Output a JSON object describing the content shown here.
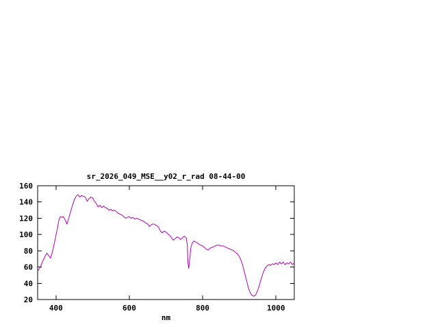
{
  "window": {
    "background": "#ffffff"
  },
  "chart_data": {
    "type": "line",
    "title": "sr_2026_049_MSE__y02_r_rad 08-44-00",
    "xlabel": "nm",
    "ylabel": "",
    "xlim": [
      350,
      1050
    ],
    "ylim": [
      20,
      160
    ],
    "x_ticks": [
      400,
      600,
      800,
      1000
    ],
    "y_ticks": [
      20,
      40,
      60,
      80,
      100,
      120,
      140,
      160
    ],
    "grid": false,
    "legend_position": "none",
    "line_color": "#b000b0",
    "frame_color": "#000000",
    "series": [
      {
        "name": "sr_2026_049_MSE__y02_r_rad",
        "points": [
          [
            350,
            55
          ],
          [
            355,
            58
          ],
          [
            360,
            63
          ],
          [
            365,
            68
          ],
          [
            370,
            73
          ],
          [
            375,
            77
          ],
          [
            380,
            74
          ],
          [
            385,
            71
          ],
          [
            390,
            78
          ],
          [
            395,
            88
          ],
          [
            400,
            99
          ],
          [
            405,
            110
          ],
          [
            408,
            118
          ],
          [
            412,
            122
          ],
          [
            416,
            121
          ],
          [
            420,
            122
          ],
          [
            425,
            118
          ],
          [
            430,
            113
          ],
          [
            435,
            120
          ],
          [
            440,
            128
          ],
          [
            445,
            136
          ],
          [
            450,
            143
          ],
          [
            455,
            147
          ],
          [
            460,
            149
          ],
          [
            465,
            146
          ],
          [
            470,
            148
          ],
          [
            475,
            147
          ],
          [
            480,
            146
          ],
          [
            485,
            141
          ],
          [
            490,
            144
          ],
          [
            495,
            146
          ],
          [
            500,
            145
          ],
          [
            505,
            141
          ],
          [
            510,
            138
          ],
          [
            515,
            134
          ],
          [
            520,
            136
          ],
          [
            525,
            133
          ],
          [
            530,
            135
          ],
          [
            535,
            133
          ],
          [
            540,
            132
          ],
          [
            545,
            130
          ],
          [
            550,
            131
          ],
          [
            555,
            129
          ],
          [
            560,
            130
          ],
          [
            565,
            128
          ],
          [
            570,
            126
          ],
          [
            575,
            125
          ],
          [
            580,
            124
          ],
          [
            585,
            122
          ],
          [
            590,
            120
          ],
          [
            595,
            121
          ],
          [
            600,
            122
          ],
          [
            605,
            120
          ],
          [
            610,
            121
          ],
          [
            615,
            119
          ],
          [
            620,
            120
          ],
          [
            625,
            119
          ],
          [
            630,
            118
          ],
          [
            635,
            117
          ],
          [
            640,
            116
          ],
          [
            645,
            114
          ],
          [
            650,
            113
          ],
          [
            655,
            110
          ],
          [
            660,
            112
          ],
          [
            665,
            113
          ],
          [
            670,
            112
          ],
          [
            675,
            111
          ],
          [
            680,
            109
          ],
          [
            685,
            104
          ],
          [
            690,
            102
          ],
          [
            695,
            104
          ],
          [
            700,
            103
          ],
          [
            705,
            101
          ],
          [
            710,
            99
          ],
          [
            715,
            96
          ],
          [
            720,
            93
          ],
          [
            725,
            95
          ],
          [
            730,
            97
          ],
          [
            735,
            96
          ],
          [
            740,
            94
          ],
          [
            745,
            96
          ],
          [
            750,
            98
          ],
          [
            755,
            96
          ],
          [
            758,
            88
          ],
          [
            760,
            66
          ],
          [
            762,
            58
          ],
          [
            765,
            70
          ],
          [
            768,
            84
          ],
          [
            772,
            90
          ],
          [
            776,
            92
          ],
          [
            780,
            91
          ],
          [
            785,
            90
          ],
          [
            790,
            88
          ],
          [
            795,
            87
          ],
          [
            800,
            86
          ],
          [
            805,
            84
          ],
          [
            810,
            82
          ],
          [
            815,
            81
          ],
          [
            820,
            83
          ],
          [
            825,
            84
          ],
          [
            830,
            85
          ],
          [
            835,
            86
          ],
          [
            840,
            87
          ],
          [
            845,
            87
          ],
          [
            850,
            86
          ],
          [
            855,
            86
          ],
          [
            860,
            85
          ],
          [
            865,
            84
          ],
          [
            870,
            83
          ],
          [
            875,
            82
          ],
          [
            880,
            81
          ],
          [
            885,
            80
          ],
          [
            890,
            78
          ],
          [
            895,
            76
          ],
          [
            900,
            73
          ],
          [
            905,
            68
          ],
          [
            910,
            61
          ],
          [
            915,
            52
          ],
          [
            920,
            43
          ],
          [
            925,
            34
          ],
          [
            930,
            28
          ],
          [
            935,
            25
          ],
          [
            940,
            24
          ],
          [
            945,
            26
          ],
          [
            950,
            31
          ],
          [
            955,
            38
          ],
          [
            960,
            46
          ],
          [
            965,
            53
          ],
          [
            970,
            58
          ],
          [
            975,
            61
          ],
          [
            980,
            63
          ],
          [
            985,
            62
          ],
          [
            990,
            64
          ],
          [
            995,
            63
          ],
          [
            1000,
            65
          ],
          [
            1005,
            63
          ],
          [
            1010,
            66
          ],
          [
            1015,
            64
          ],
          [
            1020,
            66
          ],
          [
            1025,
            63
          ],
          [
            1030,
            65
          ],
          [
            1035,
            64
          ],
          [
            1040,
            66
          ],
          [
            1045,
            63
          ],
          [
            1050,
            65
          ]
        ]
      }
    ]
  }
}
